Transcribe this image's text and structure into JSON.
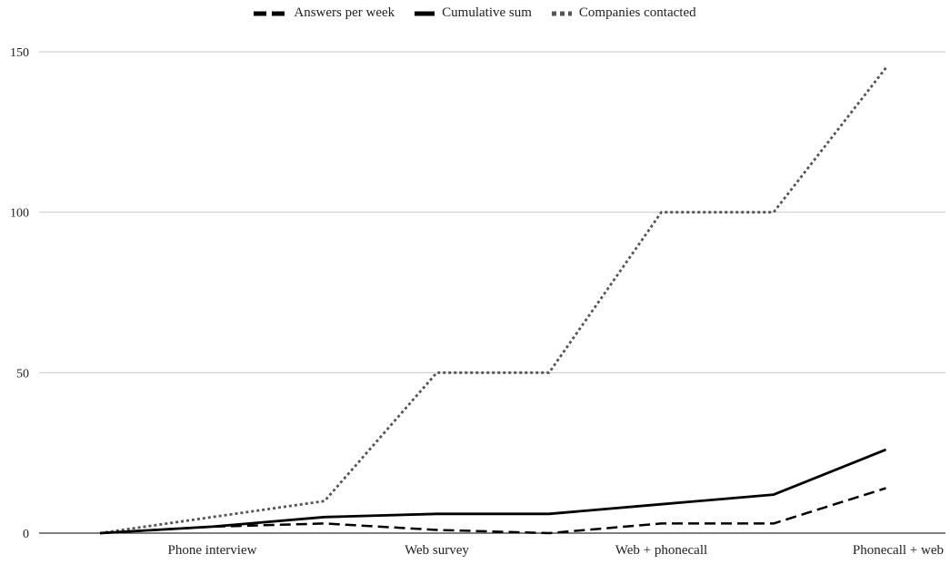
{
  "chart_data": {
    "type": "line",
    "categories": [
      "",
      "Phone interview",
      "",
      "Web survey",
      "",
      "Web + phonecall",
      "",
      "Phonecall + web"
    ],
    "x_tick_labels": [
      "Phone interview",
      "Web survey",
      "Web + phonecall",
      "Phonecall + web"
    ],
    "series": [
      {
        "name": "Answers per week",
        "values": [
          0,
          2,
          3,
          1,
          0,
          3,
          3,
          14
        ],
        "color": "#000000",
        "style": "dashed"
      },
      {
        "name": "Cumulative sum",
        "values": [
          0,
          2,
          5,
          6,
          6,
          9,
          12,
          26
        ],
        "color": "#000000",
        "style": "solid"
      },
      {
        "name": "Companies contacted",
        "values": [
          0,
          5,
          10,
          50,
          50,
          100,
          100,
          145
        ],
        "color": "#555555",
        "style": "dotted"
      }
    ],
    "ylim": [
      0,
      150
    ],
    "y_ticks": [
      0,
      50,
      100,
      150
    ],
    "grid": true,
    "legend_position": "top-center",
    "title": "",
    "xlabel": "",
    "ylabel": ""
  }
}
